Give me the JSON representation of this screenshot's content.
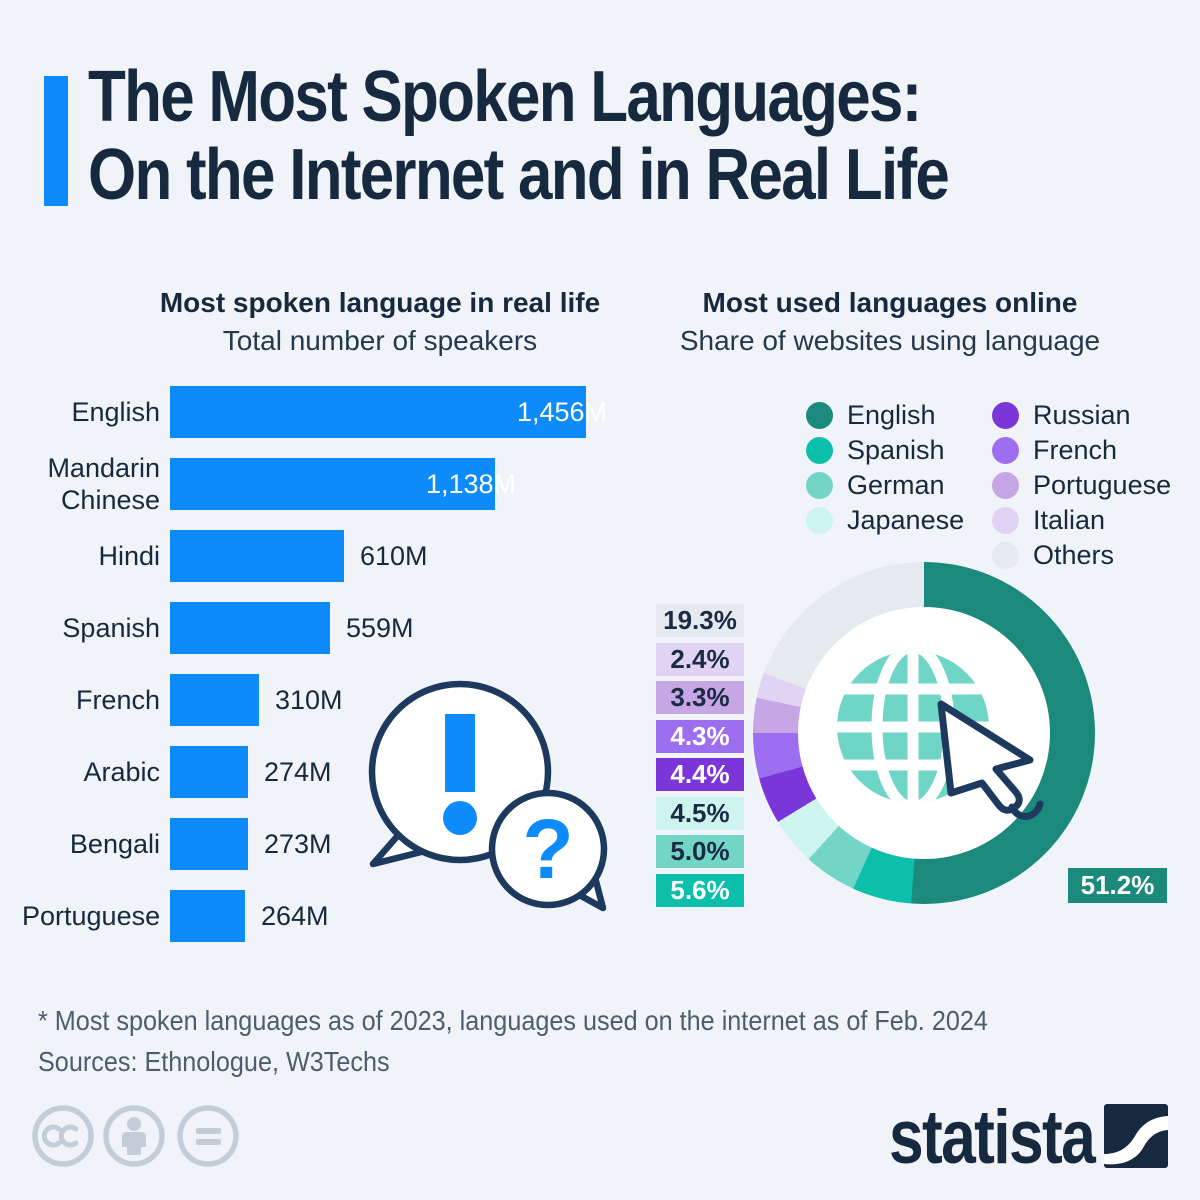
{
  "page": {
    "background": "#f0f4f8",
    "accent_blue": "#0e8bfb",
    "navy": "#16293e",
    "bubble_outline": "#1d3a5e",
    "footer_gray": "#4d5d6d",
    "cc_gray": "#c3cdd7"
  },
  "title": {
    "line1": "The Most Spoken Languages:",
    "line2": "On the Internet and in Real Life"
  },
  "footnote": {
    "line1": "* Most spoken languages as of 2023, languages used on the internet as of Feb. 2024",
    "line2": "Sources: Ethnologue, W3Techs"
  },
  "branding": {
    "statista_label": "statista"
  },
  "chart_data": [
    {
      "type": "bar",
      "orientation": "horizontal",
      "title": "Most spoken language in real life",
      "subtitle": "Total number of speakers",
      "unit": "M",
      "categories": [
        "English",
        "Mandarin Chinese",
        "Hindi",
        "Spanish",
        "French",
        "Arabic",
        "Bengali",
        "Portuguese"
      ],
      "values": [
        1456,
        1138,
        610,
        559,
        310,
        274,
        273,
        264
      ],
      "value_labels": [
        "1,456M",
        "1,138M",
        "610M",
        "559M",
        "310M",
        "274M",
        "273M",
        "264M"
      ],
      "bar_color": "#0e8bfb",
      "xlim": [
        0,
        1456
      ]
    },
    {
      "type": "pie",
      "title": "Most used languages online",
      "subtitle": "Share of websites using language",
      "unit": "%",
      "start_angle_deg": 0,
      "direction": "clockwise",
      "segments": [
        {
          "name": "English",
          "value": 51.2,
          "color": "#1b8a7c",
          "label_style": "light"
        },
        {
          "name": "Spanish",
          "value": 5.6,
          "color": "#0bbfaa",
          "label_style": "light"
        },
        {
          "name": "German",
          "value": 5.0,
          "color": "#72d5c6",
          "label_style": "dark"
        },
        {
          "name": "Japanese",
          "value": 4.5,
          "color": "#cdf5ee",
          "label_style": "dark"
        },
        {
          "name": "Russian",
          "value": 4.4,
          "color": "#7b36d9",
          "label_style": "light"
        },
        {
          "name": "French",
          "value": 4.3,
          "color": "#9d6ff0",
          "label_style": "light"
        },
        {
          "name": "Portuguese",
          "value": 3.3,
          "color": "#c7a6e6",
          "label_style": "dark"
        },
        {
          "name": "Italian",
          "value": 2.4,
          "color": "#e1d3f4",
          "label_style": "dark"
        },
        {
          "name": "Others",
          "value": 19.3,
          "color": "#e5eaee",
          "label_style": "dark"
        }
      ],
      "legend_columns": [
        [
          "English",
          "Spanish",
          "German",
          "Japanese"
        ],
        [
          "Russian",
          "French",
          "Portuguese",
          "Italian",
          "Others"
        ]
      ]
    }
  ]
}
